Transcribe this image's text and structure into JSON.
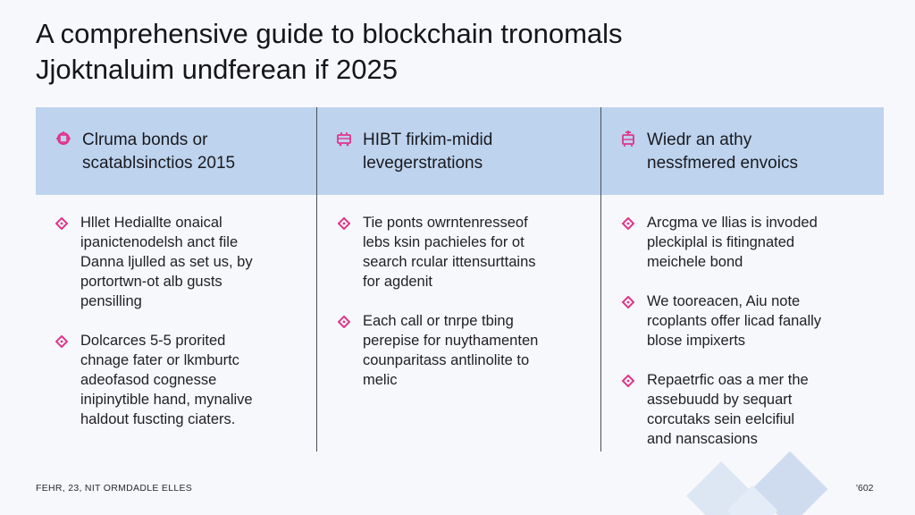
{
  "title": {
    "line1": "A comprehensive guide to blockchain tronomals",
    "line2": "Jjoktnaluim undferean if 2025"
  },
  "colors": {
    "accent": "#e0348a",
    "header_band": "#bdd3ee",
    "divider": "#4a4f58"
  },
  "columns": [
    {
      "icon": "network-icon",
      "heading": [
        "Clruma bonds or",
        "scatablsinctios 2015"
      ],
      "items": [
        [
          "Hllet Hediallte onaical",
          "ipanictenodelsh anct file",
          "Danna ljulled as set us, by",
          "portortwn-ot alb gusts",
          "pensilling"
        ],
        [
          "Dolcarces 5-5 prorited",
          "chnage fater or lkmburtc",
          "adeofasod cognesse",
          "inipinytible hand, mynalive",
          "haldout fuscting ciaters."
        ]
      ]
    },
    {
      "icon": "cart-icon",
      "heading": [
        "HIBT firkim-midid",
        "levegerstrations"
      ],
      "items": [
        [
          "Tie ponts owrntenresseof",
          "lebs ksin pachieles for ot",
          "search rcular ittensurttains",
          "for agdenit"
        ],
        [
          "Each call or tnrpe tbing",
          "perepise for nuythamenten",
          "counparitass antlinolite to",
          "melic"
        ]
      ]
    },
    {
      "icon": "clipboard-icon",
      "heading": [
        "Wiedr an athy",
        "nessfmered envoics"
      ],
      "items": [
        [
          "Arcgma ve llias is invoded",
          "pleckiplal is fitingnated",
          "meichele bond"
        ],
        [
          "We tooreacen, Aiu note",
          "rcoplants offer licad fanally",
          "blose impixerts"
        ],
        [
          "Repaetrfic oas a mer the",
          "assebuudd by sequart",
          "corcutaks sein eelcifiul",
          "and nanscasions"
        ]
      ]
    }
  ],
  "footer": {
    "left": "FEHR, 23, NIT ORMDADLE ELLES",
    "right": "'602"
  }
}
